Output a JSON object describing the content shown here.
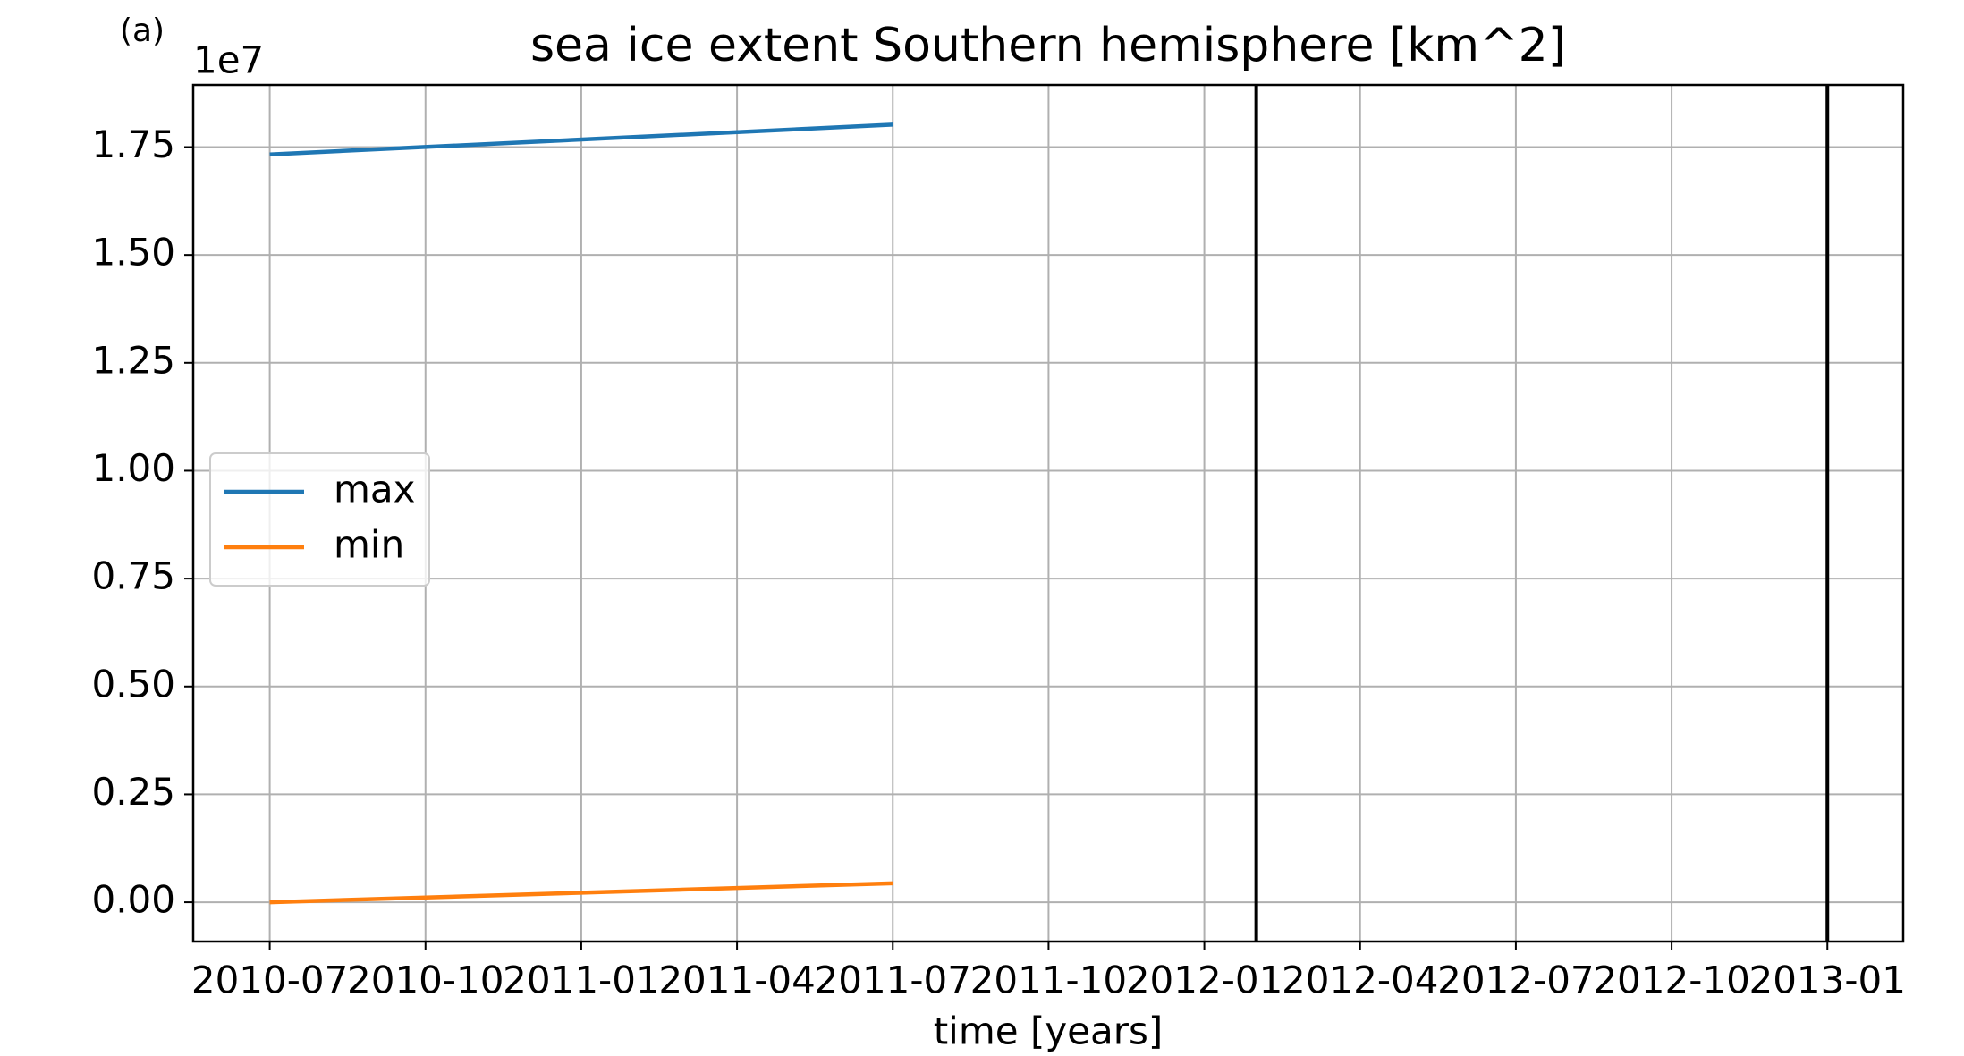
{
  "chart_data": {
    "type": "line",
    "panel_label": "(a)",
    "title": "sea ice extent Southern hemisphere [km^2]",
    "x_label": "time [years]",
    "y_offset_label": "1e7",
    "x": [
      "2010-07",
      "2011-07"
    ],
    "series": [
      {
        "name": "max",
        "color": "#1f77b4",
        "values": [
          17330000,
          18020000
        ]
      },
      {
        "name": "min",
        "color": "#ff7f0e",
        "values": [
          0,
          440000
        ]
      }
    ],
    "vlines": {
      "color": "#000000",
      "x": [
        "2012-02",
        "2013-01"
      ]
    },
    "xlim": [
      "2010-05-17",
      "2013-02-15"
    ],
    "xticks": [
      "2010-07",
      "2010-10",
      "2011-01",
      "2011-04",
      "2011-07",
      "2011-10",
      "2012-01",
      "2012-04",
      "2012-07",
      "2012-10",
      "2013-01"
    ],
    "ylim": [
      -910000,
      18940000
    ],
    "yticks": [
      {
        "value": 0,
        "label": "0.00"
      },
      {
        "value": 2500000,
        "label": "0.25"
      },
      {
        "value": 5000000,
        "label": "0.50"
      },
      {
        "value": 7500000,
        "label": "0.75"
      },
      {
        "value": 10000000,
        "label": "1.00"
      },
      {
        "value": 12500000,
        "label": "1.25"
      },
      {
        "value": 15000000,
        "label": "1.50"
      },
      {
        "value": 17500000,
        "label": "1.75"
      }
    ],
    "grid": true,
    "legend": "center left"
  }
}
